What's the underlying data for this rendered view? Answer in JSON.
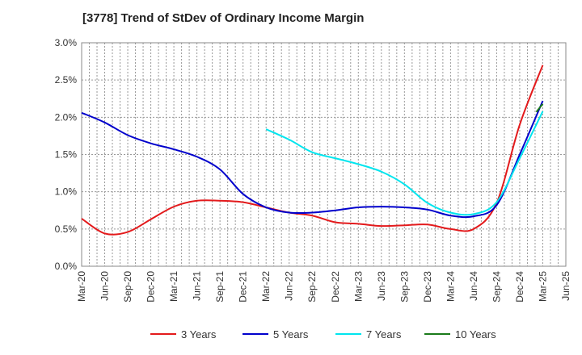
{
  "chart_data": {
    "type": "line",
    "title": "[3778]  Trend of StDev of Ordinary Income Margin",
    "xlabel": "",
    "ylabel": "",
    "ylim": [
      0,
      3.0
    ],
    "y_ticks": [
      0.0,
      0.5,
      1.0,
      1.5,
      2.0,
      2.5,
      3.0
    ],
    "y_tick_labels": [
      "0.0%",
      "0.5%",
      "1.0%",
      "1.5%",
      "2.0%",
      "2.5%",
      "3.0%"
    ],
    "x_tick_labels": [
      "Mar-20",
      "Jun-20",
      "Sep-20",
      "Dec-20",
      "Mar-21",
      "Jun-21",
      "Sep-21",
      "Dec-21",
      "Mar-22",
      "Jun-22",
      "Sep-22",
      "Dec-22",
      "Mar-23",
      "Jun-23",
      "Sep-23",
      "Dec-23",
      "Mar-24",
      "Jun-24",
      "Sep-24",
      "Dec-24",
      "Mar-25",
      "Jun-25"
    ],
    "grid": true,
    "legend_position": "bottom",
    "series": [
      {
        "name": "3 Years",
        "color": "#e31a1c",
        "values": [
          0.64,
          0.44,
          0.46,
          0.63,
          0.8,
          0.88,
          0.88,
          0.86,
          0.79,
          0.72,
          0.68,
          0.59,
          0.57,
          0.54,
          0.55,
          0.56,
          0.5,
          0.5,
          0.85,
          1.9,
          2.7,
          null
        ]
      },
      {
        "name": "5 Years",
        "color": "#0000cc",
        "values": [
          2.06,
          1.93,
          1.76,
          1.65,
          1.57,
          1.47,
          1.3,
          0.97,
          0.79,
          0.72,
          0.72,
          0.75,
          0.79,
          0.8,
          0.79,
          0.76,
          0.68,
          0.67,
          0.82,
          1.5,
          2.22,
          null
        ]
      },
      {
        "name": "7 Years",
        "color": "#00e5ee",
        "values": [
          null,
          null,
          null,
          null,
          null,
          null,
          null,
          null,
          1.84,
          1.7,
          1.53,
          1.45,
          1.37,
          1.27,
          1.1,
          0.85,
          0.72,
          0.7,
          0.86,
          1.45,
          2.08,
          null
        ]
      },
      {
        "name": "10 Years",
        "color": "#1a7a1a",
        "values": [
          null,
          null,
          null,
          null,
          null,
          null,
          null,
          null,
          null,
          null,
          null,
          null,
          null,
          null,
          null,
          null,
          null,
          null,
          null,
          null,
          2.18,
          null
        ]
      }
    ]
  }
}
